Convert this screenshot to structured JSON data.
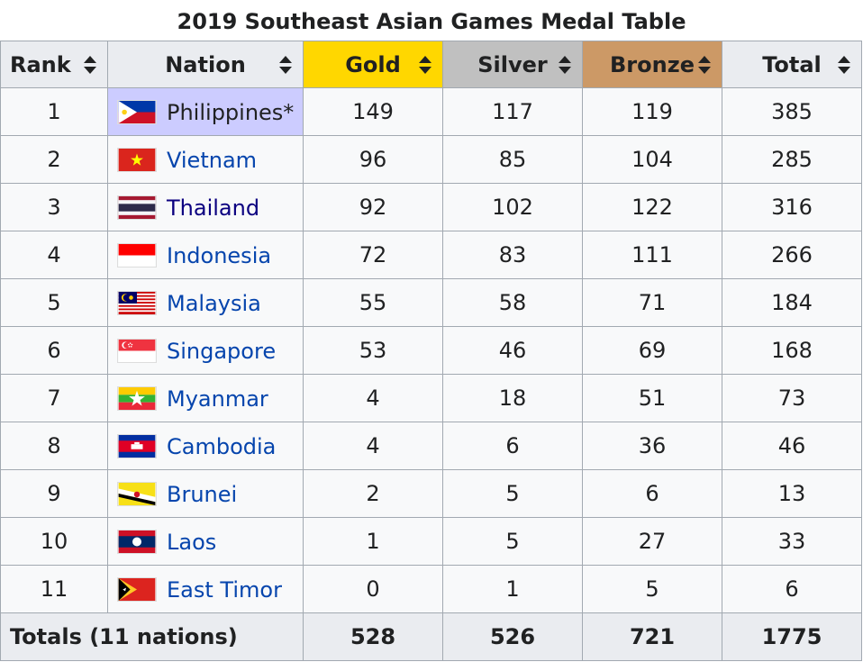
{
  "caption": "2019 Southeast Asian Games Medal Table",
  "headers": {
    "rank": "Rank",
    "nation": "Nation",
    "gold": "Gold",
    "silver": "Silver",
    "bronze": "Bronze",
    "total": "Total"
  },
  "rows": [
    {
      "rank": "1",
      "nation": "Philippines*",
      "gold": "149",
      "silver": "117",
      "bronze": "119",
      "total": "385"
    },
    {
      "rank": "2",
      "nation": "Vietnam",
      "gold": "96",
      "silver": "85",
      "bronze": "104",
      "total": "285"
    },
    {
      "rank": "3",
      "nation": "Thailand",
      "gold": "92",
      "silver": "102",
      "bronze": "122",
      "total": "316"
    },
    {
      "rank": "4",
      "nation": "Indonesia",
      "gold": "72",
      "silver": "83",
      "bronze": "111",
      "total": "266"
    },
    {
      "rank": "5",
      "nation": "Malaysia",
      "gold": "55",
      "silver": "58",
      "bronze": "71",
      "total": "184"
    },
    {
      "rank": "6",
      "nation": "Singapore",
      "gold": "53",
      "silver": "46",
      "bronze": "69",
      "total": "168"
    },
    {
      "rank": "7",
      "nation": "Myanmar",
      "gold": "4",
      "silver": "18",
      "bronze": "51",
      "total": "73"
    },
    {
      "rank": "8",
      "nation": "Cambodia",
      "gold": "4",
      "silver": "6",
      "bronze": "36",
      "total": "46"
    },
    {
      "rank": "9",
      "nation": "Brunei",
      "gold": "2",
      "silver": "5",
      "bronze": "6",
      "total": "13"
    },
    {
      "rank": "10",
      "nation": "Laos",
      "gold": "1",
      "silver": "5",
      "bronze": "27",
      "total": "33"
    },
    {
      "rank": "11",
      "nation": "East Timor",
      "gold": "0",
      "silver": "1",
      "bronze": "5",
      "total": "6"
    }
  ],
  "totals": {
    "label": "Totals (11 nations)",
    "gold": "528",
    "silver": "526",
    "bronze": "721",
    "total": "1775"
  },
  "colors": {
    "gold": "#ffd700",
    "silver": "#c0c0c0",
    "bronze": "#cc9966",
    "host": "#ccccff",
    "link": "#0645ad"
  }
}
